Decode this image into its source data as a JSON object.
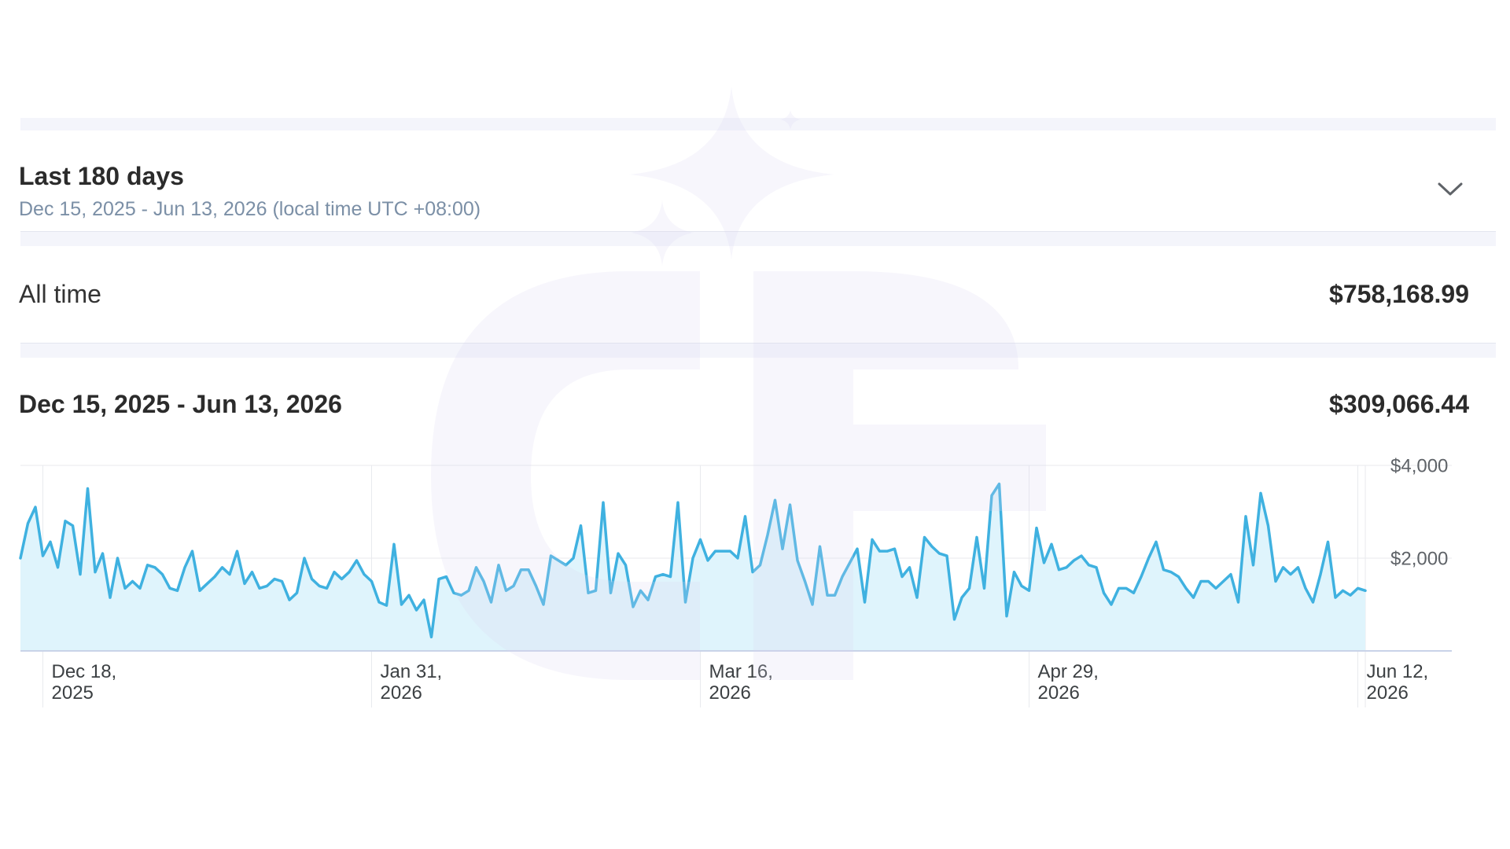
{
  "date_range": {
    "title": "Last 180 days",
    "subtitle": "Dec 15, 2025 - Jun 13, 2026 (local time UTC +08:00)",
    "dropdown_icon": "chevron-down-icon"
  },
  "all_time": {
    "label": "All time",
    "value": "$758,168.99"
  },
  "period": {
    "label": "Dec 15, 2025 - Jun 13, 2026",
    "value": "$309,066.44"
  },
  "colors": {
    "line": "#3fb1e0",
    "area": "#dff4fc",
    "grid": "#e8eaee",
    "axis": "#c9d3e8"
  },
  "chart_data": {
    "type": "area",
    "y_ticks": [
      {
        "value": 4000,
        "label": "$4,000"
      },
      {
        "value": 2000,
        "label": "$2,000"
      }
    ],
    "x_ticks": [
      {
        "day": 3,
        "line1": "Dec 18,",
        "line2": "2025"
      },
      {
        "day": 47,
        "line1": "Jan 31,",
        "line2": "2026"
      },
      {
        "day": 91,
        "line1": "Mar 16,",
        "line2": "2026"
      },
      {
        "day": 135,
        "line1": "Apr 29,",
        "line2": "2026"
      },
      {
        "day": 179,
        "line1": "Jun 12,",
        "line2": "2026"
      }
    ],
    "ylim": [
      0,
      4000
    ],
    "x_start": "Dec 15, 2025",
    "x_end": "Jun 13, 2026",
    "grid": true,
    "values": [
      2000,
      2750,
      3100,
      2050,
      2350,
      1800,
      2800,
      2700,
      1650,
      3500,
      1700,
      2100,
      1150,
      2000,
      1350,
      1500,
      1350,
      1850,
      1800,
      1650,
      1350,
      1300,
      1800,
      2150,
      1300,
      1450,
      1600,
      1800,
      1650,
      2150,
      1450,
      1700,
      1350,
      1400,
      1550,
      1500,
      1100,
      1250,
      2000,
      1550,
      1400,
      1350,
      1700,
      1550,
      1700,
      1950,
      1650,
      1500,
      1050,
      980,
      2300,
      1000,
      1200,
      880,
      1100,
      300,
      1550,
      1600,
      1250,
      1200,
      1300,
      1800,
      1500,
      1050,
      1850,
      1300,
      1400,
      1750,
      1750,
      1400,
      1000,
      2050,
      1950,
      1850,
      2000,
      2700,
      1250,
      1300,
      3200,
      1250,
      2100,
      1850,
      950,
      1300,
      1100,
      1600,
      1650,
      1600,
      3200,
      1050,
      2000,
      2400,
      1950,
      2150,
      2150,
      2150,
      2000,
      2900,
      1700,
      1850,
      2500,
      3250,
      2200,
      3150,
      1950,
      1500,
      1000,
      2250,
      1200,
      1200,
      1600,
      1900,
      2200,
      1050,
      2400,
      2150,
      2150,
      2200,
      1600,
      1800,
      1150,
      2450,
      2250,
      2100,
      2050,
      680,
      1150,
      1350,
      2450,
      1350,
      3350,
      3600,
      750,
      1700,
      1400,
      1300,
      2650,
      1900,
      2300,
      1750,
      1800,
      1950,
      2050,
      1850,
      1800,
      1250,
      1000,
      1350,
      1350,
      1250,
      1600,
      2000,
      2350,
      1750,
      1700,
      1600,
      1350,
      1150,
      1500,
      1500,
      1350,
      1500,
      1650,
      1050,
      2900,
      1850,
      3400,
      2700,
      1500,
      1800,
      1650,
      1800,
      1350,
      1050,
      1650,
      2350,
      1150,
      1300,
      1200,
      1350,
      1300
    ]
  }
}
